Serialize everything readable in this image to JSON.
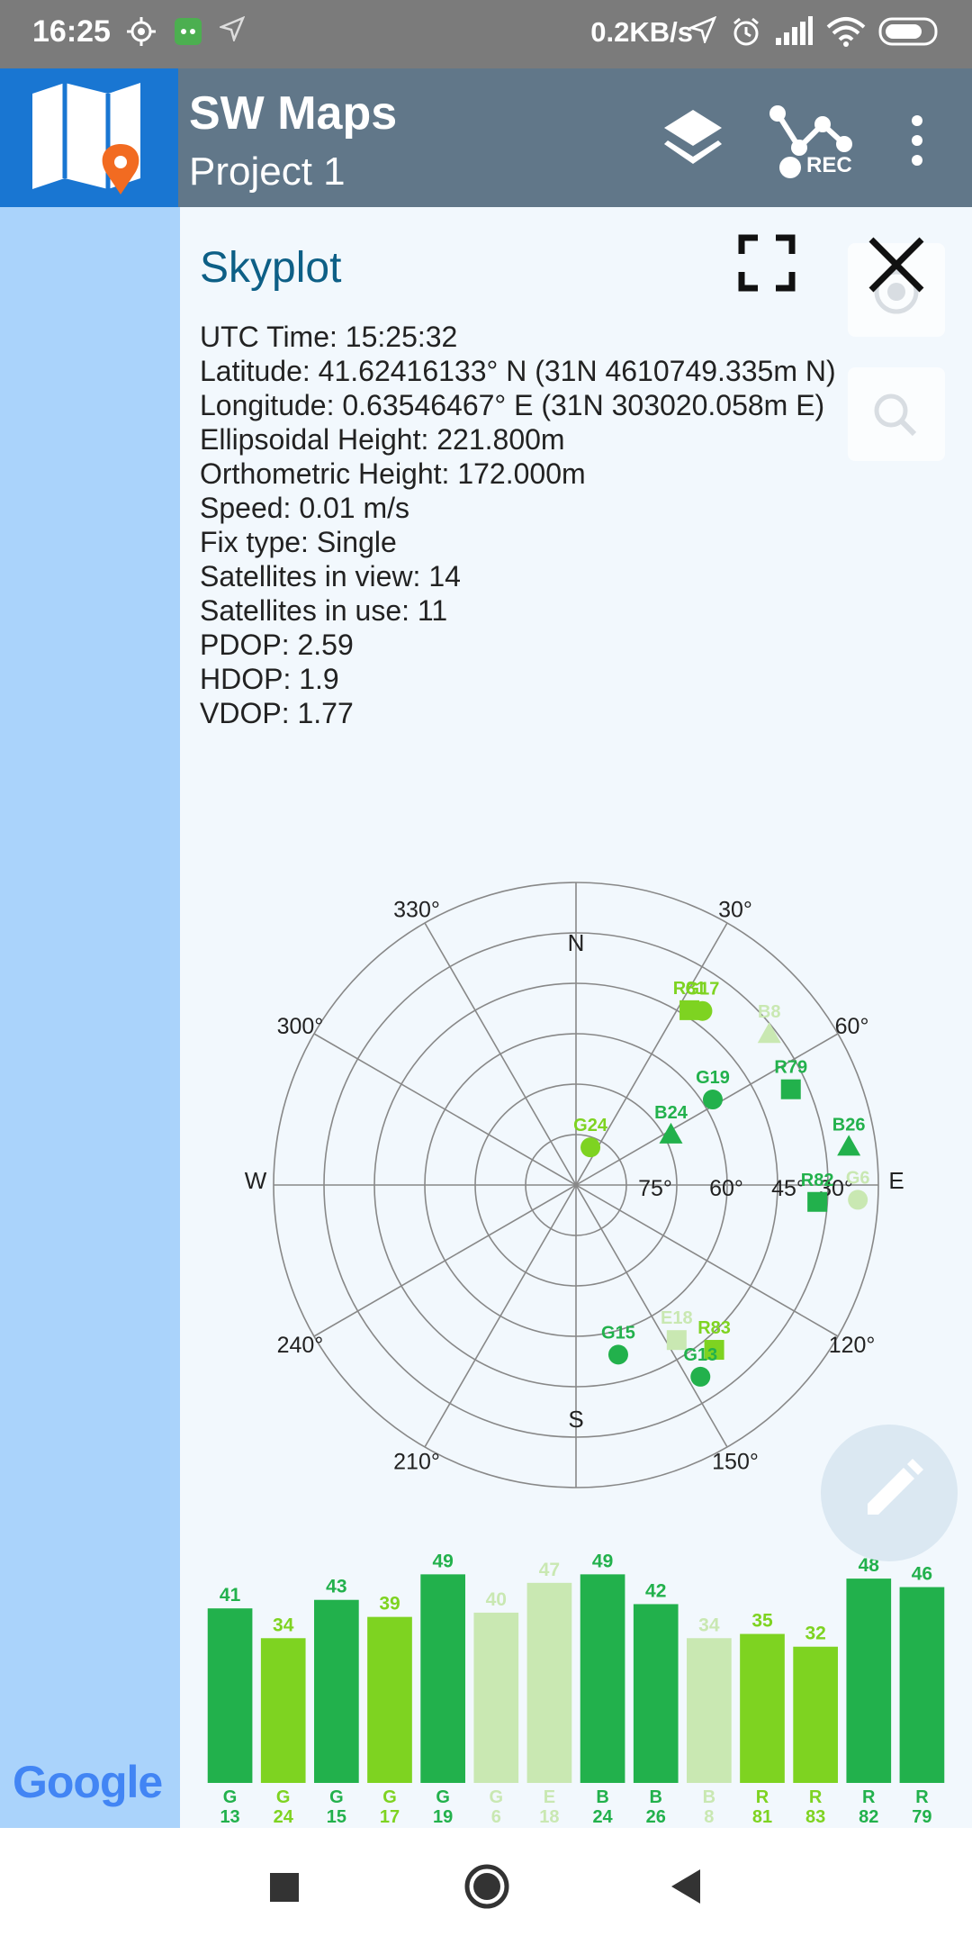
{
  "status_bar": {
    "time": "16:25",
    "network_speed": "0.2KB/s",
    "icons": [
      "location-target-icon",
      "android-bot-icon",
      "navigation-arrow-icon",
      "alarm-icon",
      "signal-icon",
      "wifi-icon",
      "battery-icon"
    ]
  },
  "app_bar": {
    "title": "SW Maps",
    "subtitle": "Project 1",
    "rec_label": "REC",
    "icons": [
      "layers-icon",
      "record-track-icon",
      "more-vert-icon"
    ]
  },
  "skyplot": {
    "title": "Skyplot",
    "info": [
      "UTC Time: 15:25:32",
      "Latitude: 41.62416133° N (31N 4610749.335m N)",
      "Longitude: 0.63546467° E (31N 303020.058m E)",
      "Ellipsoidal Height: 221.800m",
      "Orthometric Height: 172.000m",
      "Speed: 0.01 m/s",
      "Fix type: Single",
      "Satellites in view: 14",
      "Satellites in use: 11",
      "PDOP: 2.59",
      "HDOP: 1.9",
      "VDOP: 1.77"
    ],
    "directions": {
      "n": "N",
      "s": "S",
      "e": "E",
      "w": "W"
    },
    "azimuth_labels": [
      {
        "az": 30,
        "label": "30°"
      },
      {
        "az": 60,
        "label": "60°"
      },
      {
        "az": 120,
        "label": "120°"
      },
      {
        "az": 150,
        "label": "150°"
      },
      {
        "az": 210,
        "label": "210°"
      },
      {
        "az": 240,
        "label": "240°"
      },
      {
        "az": 300,
        "label": "300°"
      },
      {
        "az": 330,
        "label": "330°"
      }
    ],
    "elevation_labels": [
      "75°",
      "60°",
      "45°",
      "30°"
    ],
    "satellites": [
      {
        "id": "R81",
        "az": 33,
        "el": 28,
        "shape": "square",
        "color": "#7ed321"
      },
      {
        "id": "G17",
        "az": 36,
        "el": 26,
        "shape": "circle",
        "color": "#7ed321"
      },
      {
        "id": "B8",
        "az": 52,
        "el": 17,
        "shape": "triangle",
        "color": "#c9e8b2"
      },
      {
        "id": "G19",
        "az": 58,
        "el": 42,
        "shape": "circle",
        "color": "#22b14c"
      },
      {
        "id": "R79",
        "az": 66,
        "el": 20,
        "shape": "square",
        "color": "#22b14c"
      },
      {
        "id": "B24",
        "az": 62,
        "el": 58,
        "shape": "triangle",
        "color": "#22b14c"
      },
      {
        "id": "G24",
        "az": 21,
        "el": 78,
        "shape": "circle",
        "color": "#7ed321"
      },
      {
        "id": "B26",
        "az": 82,
        "el": 8,
        "shape": "triangle",
        "color": "#22b14c"
      },
      {
        "id": "R82",
        "az": 94,
        "el": 18,
        "shape": "square",
        "color": "#22b14c"
      },
      {
        "id": "G6",
        "az": 93,
        "el": 6,
        "shape": "circle",
        "color": "#c9e8b2"
      },
      {
        "id": "E18",
        "az": 147,
        "el": 35,
        "shape": "square",
        "color": "#c9e8b2"
      },
      {
        "id": "R83",
        "az": 140,
        "el": 26,
        "shape": "square",
        "color": "#7ed321"
      },
      {
        "id": "G13",
        "az": 147,
        "el": 22,
        "shape": "circle",
        "color": "#22b14c"
      },
      {
        "id": "G15",
        "az": 166,
        "el": 38,
        "shape": "circle",
        "color": "#22b14c"
      }
    ]
  },
  "chart_data": {
    "type": "bar",
    "categories": [
      {
        "constellation": "G",
        "prn": "13"
      },
      {
        "constellation": "G",
        "prn": "24"
      },
      {
        "constellation": "G",
        "prn": "15"
      },
      {
        "constellation": "G",
        "prn": "17"
      },
      {
        "constellation": "G",
        "prn": "19"
      },
      {
        "constellation": "G",
        "prn": "6"
      },
      {
        "constellation": "E",
        "prn": "18"
      },
      {
        "constellation": "B",
        "prn": "24"
      },
      {
        "constellation": "B",
        "prn": "26"
      },
      {
        "constellation": "B",
        "prn": "8"
      },
      {
        "constellation": "R",
        "prn": "81"
      },
      {
        "constellation": "R",
        "prn": "83"
      },
      {
        "constellation": "R",
        "prn": "82"
      },
      {
        "constellation": "R",
        "prn": "79"
      }
    ],
    "values": [
      41,
      34,
      43,
      39,
      49,
      40,
      47,
      49,
      42,
      34,
      35,
      32,
      48,
      46
    ],
    "colors": [
      "#22b14c",
      "#7ed321",
      "#22b14c",
      "#7ed321",
      "#22b14c",
      "#c9e8b2",
      "#c9e8b2",
      "#22b14c",
      "#22b14c",
      "#c9e8b2",
      "#7ed321",
      "#7ed321",
      "#22b14c",
      "#22b14c"
    ],
    "ylim": [
      0,
      55
    ],
    "title": "",
    "xlabel": "",
    "ylabel": ""
  },
  "map": {
    "attribution": "Google"
  },
  "colors": {
    "app_bar": "#617789",
    "logo_bg": "#1976d2",
    "strong": "#22b14c",
    "medium": "#7ed321",
    "faint": "#c9e8b2"
  },
  "nav_bar": {
    "icons": [
      "recents-square-icon",
      "home-circle-icon",
      "back-triangle-icon"
    ]
  }
}
